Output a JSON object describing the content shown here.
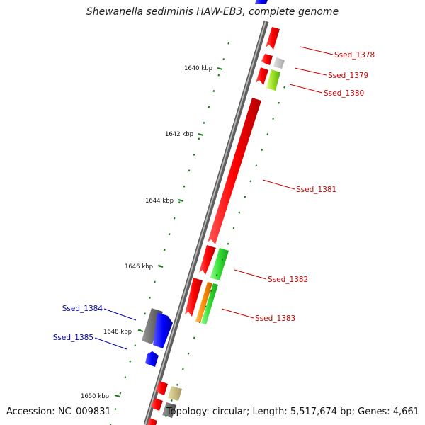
{
  "title": "Shewanella sediminis HAW-EB3, complete genome",
  "footer": {
    "accession": "Accession: NC_009831",
    "summary": "Topology: circular; Length: 5,517,674 bp; Genes: 4,661"
  },
  "colors": {
    "backbone": "#8a8a8a",
    "forward_label": "#cc0000",
    "reverse_label": "#0000aa",
    "tick": "#1a7a1a"
  },
  "ticks": [
    {
      "label": "1640 kbp"
    },
    {
      "label": "1642 kbp"
    },
    {
      "label": "1644 kbp"
    },
    {
      "label": "1646 kbp"
    },
    {
      "label": "1648 kbp"
    },
    {
      "label": "1650 kbp"
    }
  ],
  "gene_labels": [
    {
      "name": "Ssed_1378",
      "strand": "forward"
    },
    {
      "name": "Ssed_1379",
      "strand": "forward"
    },
    {
      "name": "Ssed_1380",
      "strand": "forward"
    },
    {
      "name": "Ssed_1381",
      "strand": "forward"
    },
    {
      "name": "Ssed_1382",
      "strand": "forward"
    },
    {
      "name": "Ssed_1383",
      "strand": "forward"
    },
    {
      "name": "Ssed_1384",
      "strand": "reverse"
    },
    {
      "name": "Ssed_1385",
      "strand": "reverse"
    }
  ]
}
